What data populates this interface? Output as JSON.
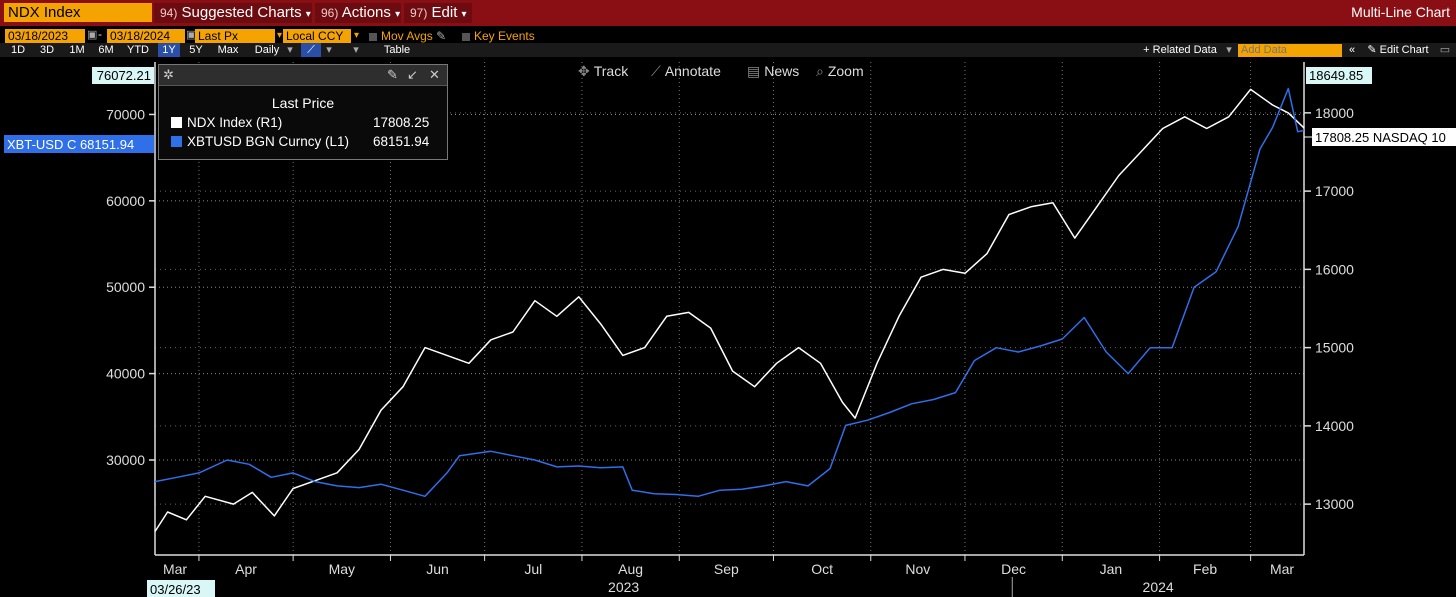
{
  "toolbar": {
    "ticker": "NDX Index",
    "suggested_num": "94)",
    "suggested_label": "Suggested Charts",
    "actions_num": "96)",
    "actions_label": "Actions",
    "edit_num": "97)",
    "edit_label": "Edit",
    "chart_type": "Multi-Line Chart",
    "start_date": "03/18/2023",
    "end_date": "03/18/2024",
    "field": "Last Px",
    "currency": "Local CCY",
    "mov_avgs": "Mov Avgs",
    "key_events": "Key Events",
    "periods": [
      "1D",
      "3D",
      "1M",
      "6M",
      "YTD",
      "1Y",
      "5Y",
      "Max"
    ],
    "frequency": "Daily",
    "table": "Table",
    "related_data": "+ Related Data",
    "add_data_placeholder": "Add Data",
    "edit_chart": "Edit Chart",
    "track": "Track",
    "annotate": "Annotate",
    "news": "News",
    "zoom": "Zoom"
  },
  "legend": {
    "title": "Last Price",
    "rows": [
      {
        "name": "NDX Index  (R1)",
        "value": "17808.25",
        "color": "#ffffff"
      },
      {
        "name": "XBTUSD BGN Curncy  (L1)",
        "value": "68151.94",
        "color": "#2f6fe8"
      }
    ]
  },
  "chart_data": {
    "type": "line",
    "left_axis": {
      "ticks": [
        30000,
        40000,
        50000,
        60000,
        70000
      ],
      "range": [
        19000,
        76072.21
      ],
      "top_label": "76072.21",
      "last_label": "XBT-USD C 68151.94"
    },
    "right_axis": {
      "ticks": [
        13000,
        14000,
        15000,
        16000,
        17000,
        18000
      ],
      "range": [
        12350,
        18649.85
      ],
      "top_label": "18649.85",
      "last_label": "17808.25 NASDAQ 10"
    },
    "x_months": [
      "Mar",
      "Apr",
      "May",
      "Jun",
      "Jul",
      "Aug",
      "Sep",
      "Oct",
      "Nov",
      "Dec",
      "Jan",
      "Feb",
      "Mar"
    ],
    "x_years": [
      "2023",
      "2024"
    ],
    "x_start_label": "03/26/23",
    "series": [
      {
        "name": "NDX Index",
        "axis": "right",
        "color": "#ffffff",
        "points": [
          [
            "2023-03-18",
            12650
          ],
          [
            "2023-03-22",
            12900
          ],
          [
            "2023-03-28",
            12800
          ],
          [
            "2023-04-03",
            13100
          ],
          [
            "2023-04-12",
            13000
          ],
          [
            "2023-04-18",
            13150
          ],
          [
            "2023-04-25",
            12850
          ],
          [
            "2023-05-01",
            13200
          ],
          [
            "2023-05-08",
            13300
          ],
          [
            "2023-05-15",
            13400
          ],
          [
            "2023-05-22",
            13700
          ],
          [
            "2023-05-29",
            14200
          ],
          [
            "2023-06-05",
            14500
          ],
          [
            "2023-06-12",
            15000
          ],
          [
            "2023-06-19",
            14900
          ],
          [
            "2023-06-26",
            14800
          ],
          [
            "2023-07-03",
            15100
          ],
          [
            "2023-07-10",
            15200
          ],
          [
            "2023-07-17",
            15600
          ],
          [
            "2023-07-24",
            15400
          ],
          [
            "2023-07-31",
            15650
          ],
          [
            "2023-08-07",
            15300
          ],
          [
            "2023-08-14",
            14900
          ],
          [
            "2023-08-21",
            15000
          ],
          [
            "2023-08-28",
            15400
          ],
          [
            "2023-09-04",
            15450
          ],
          [
            "2023-09-11",
            15250
          ],
          [
            "2023-09-18",
            14700
          ],
          [
            "2023-09-25",
            14500
          ],
          [
            "2023-10-02",
            14800
          ],
          [
            "2023-10-09",
            15000
          ],
          [
            "2023-10-16",
            14800
          ],
          [
            "2023-10-23",
            14300
          ],
          [
            "2023-10-27",
            14100
          ],
          [
            "2023-11-03",
            14800
          ],
          [
            "2023-11-10",
            15400
          ],
          [
            "2023-11-17",
            15900
          ],
          [
            "2023-11-24",
            16000
          ],
          [
            "2023-12-01",
            15950
          ],
          [
            "2023-12-08",
            16200
          ],
          [
            "2023-12-15",
            16700
          ],
          [
            "2023-12-22",
            16800
          ],
          [
            "2023-12-29",
            16850
          ],
          [
            "2024-01-05",
            16400
          ],
          [
            "2024-01-12",
            16800
          ],
          [
            "2024-01-19",
            17200
          ],
          [
            "2024-01-26",
            17500
          ],
          [
            "2024-02-02",
            17800
          ],
          [
            "2024-02-09",
            17950
          ],
          [
            "2024-02-16",
            17800
          ],
          [
            "2024-02-23",
            17950
          ],
          [
            "2024-03-01",
            18300
          ],
          [
            "2024-03-08",
            18100
          ],
          [
            "2024-03-13",
            18000
          ],
          [
            "2024-03-18",
            17808.25
          ]
        ]
      },
      {
        "name": "XBTUSD BGN Curncy",
        "axis": "left",
        "color": "#2f6fe8",
        "points": [
          [
            "2023-03-18",
            27500
          ],
          [
            "2023-03-25",
            28000
          ],
          [
            "2023-04-01",
            28500
          ],
          [
            "2023-04-10",
            30000
          ],
          [
            "2023-04-17",
            29500
          ],
          [
            "2023-04-24",
            28000
          ],
          [
            "2023-05-01",
            28500
          ],
          [
            "2023-05-08",
            27500
          ],
          [
            "2023-05-15",
            27000
          ],
          [
            "2023-05-22",
            26800
          ],
          [
            "2023-05-29",
            27200
          ],
          [
            "2023-06-05",
            26500
          ],
          [
            "2023-06-12",
            25800
          ],
          [
            "2023-06-19",
            28500
          ],
          [
            "2023-06-23",
            30500
          ],
          [
            "2023-07-03",
            31000
          ],
          [
            "2023-07-10",
            30500
          ],
          [
            "2023-07-17",
            30000
          ],
          [
            "2023-07-24",
            29200
          ],
          [
            "2023-07-31",
            29300
          ],
          [
            "2023-08-07",
            29100
          ],
          [
            "2023-08-14",
            29200
          ],
          [
            "2023-08-17",
            26500
          ],
          [
            "2023-08-24",
            26100
          ],
          [
            "2023-08-31",
            26000
          ],
          [
            "2023-09-07",
            25800
          ],
          [
            "2023-09-14",
            26500
          ],
          [
            "2023-09-21",
            26600
          ],
          [
            "2023-09-28",
            27000
          ],
          [
            "2023-10-05",
            27500
          ],
          [
            "2023-10-12",
            27000
          ],
          [
            "2023-10-19",
            29000
          ],
          [
            "2023-10-24",
            34000
          ],
          [
            "2023-10-31",
            34600
          ],
          [
            "2023-11-07",
            35500
          ],
          [
            "2023-11-14",
            36500
          ],
          [
            "2023-11-21",
            37000
          ],
          [
            "2023-11-28",
            37800
          ],
          [
            "2023-12-04",
            41500
          ],
          [
            "2023-12-11",
            43000
          ],
          [
            "2023-12-18",
            42500
          ],
          [
            "2023-12-25",
            43200
          ],
          [
            "2024-01-01",
            44000
          ],
          [
            "2024-01-08",
            46500
          ],
          [
            "2024-01-15",
            42500
          ],
          [
            "2024-01-22",
            40000
          ],
          [
            "2024-01-29",
            43000
          ],
          [
            "2024-02-05",
            43000
          ],
          [
            "2024-02-12",
            50000
          ],
          [
            "2024-02-19",
            51800
          ],
          [
            "2024-02-26",
            57000
          ],
          [
            "2024-03-04",
            66000
          ],
          [
            "2024-03-08",
            68500
          ],
          [
            "2024-03-13",
            73000
          ],
          [
            "2024-03-16",
            68000
          ],
          [
            "2024-03-18",
            68151.94
          ]
        ]
      }
    ]
  }
}
